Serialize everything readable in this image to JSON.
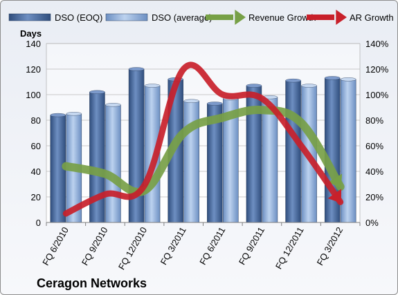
{
  "chart_data": {
    "type": "bar",
    "title": "Ceragon Networks",
    "ylabel_left": "Days",
    "ylim_left": [
      0,
      140
    ],
    "yticks_left": [
      "0",
      "20",
      "40",
      "60",
      "80",
      "100",
      "120",
      "140"
    ],
    "ylim_right": [
      0,
      1.4
    ],
    "yticks_right": [
      "0%",
      "20%",
      "40%",
      "60%",
      "80%",
      "100%",
      "120%",
      "140%"
    ],
    "categories": [
      "FQ 6/2010",
      "FQ 9/2010",
      "FQ 12/2010",
      "FQ 3/2011",
      "FQ 6/2011",
      "FQ 9/2011",
      "FQ 12/2011",
      "FQ 3/2012"
    ],
    "grid": true,
    "legend_position": "top",
    "series": [
      {
        "name": "DSO (EOQ)",
        "type": "bar",
        "axis": "left",
        "color": "#4a6fa3",
        "values": [
          84,
          102,
          120,
          112,
          93,
          107,
          111,
          113
        ]
      },
      {
        "name": "DSO (average)",
        "type": "bar",
        "axis": "left",
        "color": "#8fb0dc",
        "values": [
          85,
          92,
          107,
          95,
          97,
          98,
          107,
          112
        ]
      },
      {
        "name": "Revenue Growth",
        "type": "arrow-line",
        "axis": "right",
        "color": "#77a046",
        "values": [
          0.44,
          0.38,
          0.25,
          0.7,
          0.82,
          0.88,
          0.78,
          0.28
        ]
      },
      {
        "name": "AR Growth",
        "type": "arrow-line",
        "axis": "right",
        "color": "#c8202a",
        "values": [
          0.07,
          0.22,
          0.29,
          1.2,
          1.0,
          0.97,
          0.6,
          0.16
        ]
      }
    ]
  }
}
